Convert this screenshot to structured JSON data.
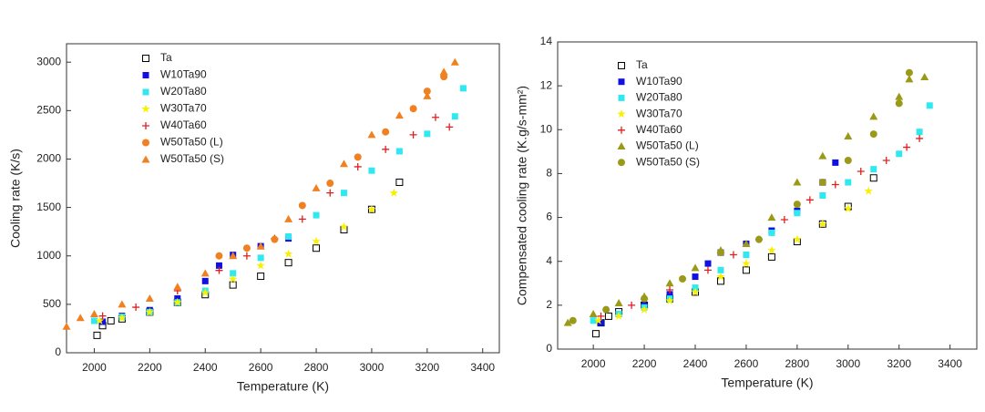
{
  "chart_data": [
    {
      "type": "scatter",
      "xlabel": "Temperature (K)",
      "ylabel": "Cooling rate (K/s)",
      "xlim": [
        1900,
        3460
      ],
      "ylim": [
        0,
        3190
      ],
      "xticks": [
        2000,
        2200,
        2400,
        2600,
        2800,
        3000,
        3200,
        3400
      ],
      "yticks": [
        0,
        500,
        1000,
        1500,
        2000,
        2500,
        3000
      ],
      "series": [
        {
          "name": "Ta",
          "color": "#000000",
          "marker": "open-square",
          "x": [
            2010,
            2030,
            2060,
            2100,
            2200,
            2300,
            2400,
            2500,
            2600,
            2700,
            2800,
            2900,
            3000,
            3100
          ],
          "values": [
            180,
            280,
            330,
            350,
            420,
            520,
            600,
            700,
            790,
            930,
            1080,
            1270,
            1480,
            1760
          ]
        },
        {
          "name": "W10Ta90",
          "color": "#1010e0",
          "marker": "square",
          "x": [
            2030,
            2100,
            2200,
            2300,
            2400,
            2450,
            2500,
            2600,
            2700
          ],
          "values": [
            320,
            380,
            440,
            560,
            740,
            900,
            1010,
            1100,
            1180
          ]
        },
        {
          "name": "W20Ta80",
          "color": "#30e8f0",
          "marker": "square",
          "x": [
            2000,
            2100,
            2200,
            2300,
            2400,
            2500,
            2600,
            2700,
            2800,
            2900,
            3000,
            3100,
            3200,
            3300,
            3330
          ],
          "values": [
            330,
            370,
            420,
            520,
            640,
            820,
            980,
            1200,
            1420,
            1650,
            1880,
            2080,
            2260,
            2440,
            2730
          ]
        },
        {
          "name": "W30Ta70",
          "color": "#f8f000",
          "marker": "star",
          "x": [
            2020,
            2100,
            2200,
            2300,
            2400,
            2500,
            2600,
            2700,
            2800,
            2900,
            3000,
            3080
          ],
          "values": [
            330,
            360,
            420,
            520,
            620,
            760,
            900,
            1020,
            1150,
            1300,
            1480,
            1650
          ]
        },
        {
          "name": "W40Ta60",
          "color": "#e02020",
          "marker": "plus",
          "x": [
            2030,
            2150,
            2300,
            2450,
            2550,
            2650,
            2750,
            2850,
            2950,
            3050,
            3150,
            3230,
            3280
          ],
          "values": [
            380,
            470,
            640,
            850,
            1000,
            1180,
            1380,
            1650,
            1920,
            2100,
            2250,
            2430,
            2330
          ]
        },
        {
          "name": "W50Ta50 (L)",
          "color": "#f08020",
          "marker": "circle",
          "x": [
            2450,
            2550,
            2650,
            2750,
            2850,
            2950,
            3050,
            3150,
            3200,
            3260
          ],
          "values": [
            1000,
            1080,
            1170,
            1520,
            1750,
            2020,
            2280,
            2520,
            2700,
            2850
          ]
        },
        {
          "name": "W50Ta50 (S)",
          "color": "#f08020",
          "marker": "triangle",
          "x": [
            1900,
            1950,
            2000,
            2100,
            2200,
            2300,
            2400,
            2500,
            2600,
            2700,
            2800,
            2900,
            3000,
            3100,
            3200,
            3260,
            3300
          ],
          "values": [
            270,
            360,
            400,
            500,
            560,
            680,
            820,
            1000,
            1100,
            1380,
            1700,
            1950,
            2250,
            2450,
            2650,
            2900,
            3000
          ]
        }
      ]
    },
    {
      "type": "scatter",
      "xlabel": "Temperature (K)",
      "ylabel": "Compensated cooling rate (K.g/s-mm²)",
      "xlim": [
        1860,
        3505
      ],
      "ylim": [
        0,
        14
      ],
      "xticks": [
        2000,
        2200,
        2400,
        2600,
        2800,
        3000,
        3200,
        3400
      ],
      "yticks": [
        0,
        2,
        4,
        6,
        8,
        10,
        12,
        14
      ],
      "series": [
        {
          "name": "Ta",
          "color": "#000000",
          "marker": "open-square",
          "x": [
            2010,
            2030,
            2060,
            2100,
            2200,
            2300,
            2400,
            2500,
            2600,
            2700,
            2800,
            2900,
            3000,
            3100
          ],
          "values": [
            0.7,
            1.2,
            1.5,
            1.7,
            2.0,
            2.3,
            2.6,
            3.1,
            3.6,
            4.2,
            4.9,
            5.7,
            6.5,
            7.8
          ]
        },
        {
          "name": "W10Ta90",
          "color": "#1010e0",
          "marker": "square",
          "x": [
            2030,
            2100,
            2200,
            2300,
            2400,
            2450,
            2500,
            2600,
            2700,
            2800,
            2900,
            2950
          ],
          "values": [
            1.2,
            1.6,
            2.0,
            2.5,
            3.3,
            3.9,
            4.4,
            4.8,
            5.4,
            6.3,
            7.6,
            8.5
          ]
        },
        {
          "name": "W20Ta80",
          "color": "#30e8f0",
          "marker": "square",
          "x": [
            2000,
            2100,
            2200,
            2300,
            2400,
            2500,
            2600,
            2700,
            2800,
            2900,
            3000,
            3100,
            3200,
            3280,
            3320
          ],
          "values": [
            1.3,
            1.6,
            1.9,
            2.3,
            2.8,
            3.6,
            4.3,
            5.3,
            6.2,
            7.0,
            7.6,
            8.2,
            8.9,
            9.9,
            11.1
          ]
        },
        {
          "name": "W30Ta70",
          "color": "#f8f000",
          "marker": "star",
          "x": [
            2020,
            2100,
            2200,
            2300,
            2400,
            2500,
            2600,
            2700,
            2800,
            2900,
            3000,
            3080
          ],
          "values": [
            1.3,
            1.5,
            1.8,
            2.2,
            2.6,
            3.3,
            3.9,
            4.5,
            5.0,
            5.7,
            6.4,
            7.2
          ]
        },
        {
          "name": "W40Ta60",
          "color": "#e02020",
          "marker": "plus",
          "x": [
            2030,
            2150,
            2300,
            2450,
            2550,
            2650,
            2750,
            2850,
            2950,
            3050,
            3150,
            3230,
            3280
          ],
          "values": [
            1.5,
            2.0,
            2.7,
            3.6,
            4.3,
            5.0,
            5.9,
            6.8,
            7.5,
            8.1,
            8.6,
            9.2,
            9.6
          ]
        },
        {
          "name": "W50Ta50 (L)",
          "color": "#9a9a18",
          "marker": "triangle",
          "x": [
            1900,
            2000,
            2100,
            2200,
            2300,
            2400,
            2500,
            2600,
            2700,
            2800,
            2900,
            3000,
            3100,
            3200,
            3240,
            3300
          ],
          "values": [
            1.2,
            1.6,
            2.1,
            2.4,
            3.0,
            3.7,
            4.5,
            4.8,
            6.0,
            7.6,
            8.8,
            9.7,
            10.6,
            11.5,
            12.3,
            12.4
          ]
        },
        {
          "name": "W50Ta50 (S)",
          "color": "#9a9a18",
          "marker": "circle",
          "x": [
            1920,
            2050,
            2200,
            2350,
            2500,
            2650,
            2800,
            2900,
            3000,
            3100,
            3200,
            3240
          ],
          "values": [
            1.3,
            1.8,
            2.3,
            3.2,
            4.4,
            5.0,
            6.6,
            7.6,
            8.6,
            9.8,
            11.2,
            12.6
          ]
        }
      ]
    }
  ]
}
